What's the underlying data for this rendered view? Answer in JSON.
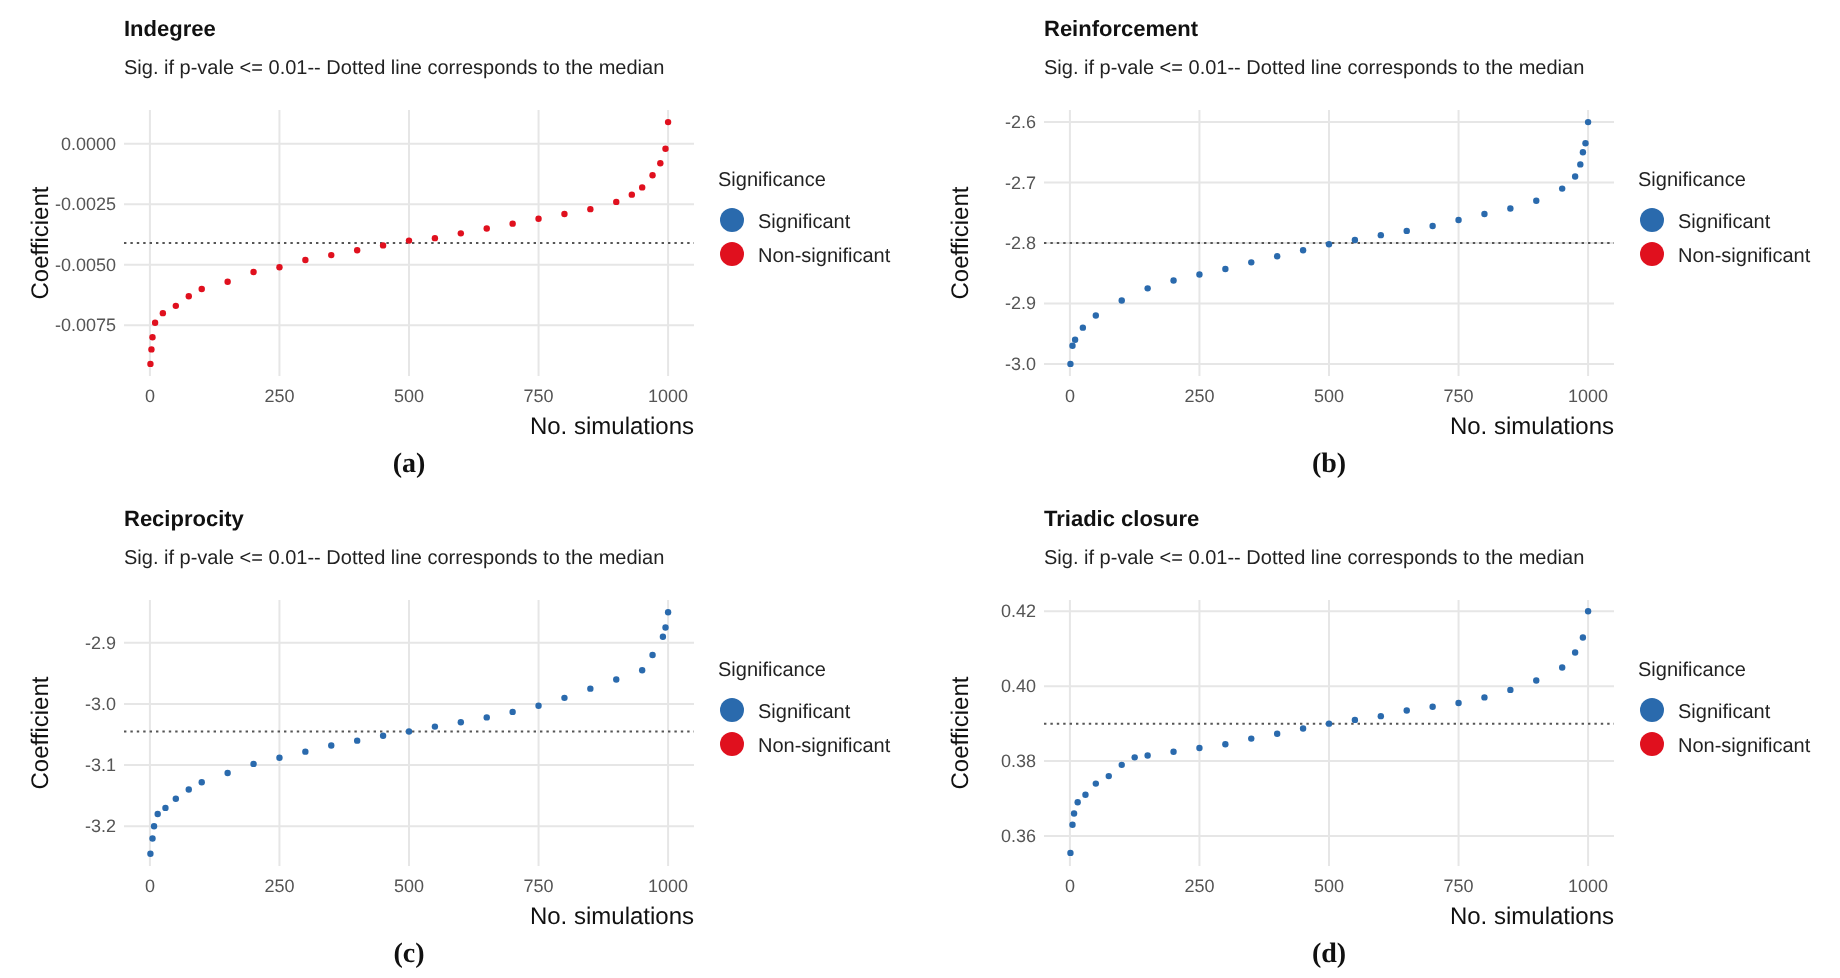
{
  "chart_data": [
    {
      "type": "scatter",
      "title": "Indegree",
      "subtitle": "Sig. if p-vale <= 0.01-- Dotted line corresponds to the median",
      "xlabel": "No. simulations",
      "ylabel": "Coefficient",
      "legend_title": "Significance",
      "legend": "right",
      "grid": true,
      "marker": "circle",
      "xlim": [
        -50,
        1050
      ],
      "xticks": [
        0,
        250,
        500,
        750,
        1000
      ],
      "ylim": [
        -0.0096,
        0.0014
      ],
      "yticks": [
        {
          "value": 0,
          "label": "0.0000"
        },
        {
          "value": -0.0025,
          "label": "-0.0025"
        },
        {
          "value": -0.005,
          "label": "-0.0050"
        },
        {
          "value": -0.0075,
          "label": "-0.0075"
        }
      ],
      "ref_lines": [
        {
          "axis": "y",
          "value": -0.0041,
          "line_style": "dotted",
          "color": "#555555"
        }
      ],
      "annotations": [
        "(a)"
      ],
      "series": [
        {
          "name": "Significant",
          "color": "#2a6aad"
        },
        {
          "name": "Non-significant",
          "color": "#e0101e",
          "x": [
            1,
            3,
            5,
            10,
            25,
            50,
            75,
            100,
            150,
            200,
            250,
            300,
            350,
            400,
            450,
            500,
            550,
            600,
            650,
            700,
            750,
            800,
            850,
            900,
            930,
            950,
            970,
            985,
            995,
            1000
          ],
          "values": [
            -0.0091,
            -0.0085,
            -0.008,
            -0.0074,
            -0.007,
            -0.0067,
            -0.0063,
            -0.006,
            -0.0057,
            -0.0053,
            -0.0051,
            -0.0048,
            -0.0046,
            -0.0044,
            -0.0042,
            -0.004,
            -0.0039,
            -0.0037,
            -0.0035,
            -0.0033,
            -0.0031,
            -0.0029,
            -0.0027,
            -0.0024,
            -0.0021,
            -0.0018,
            -0.0013,
            -0.0008,
            -0.0002,
            0.0009
          ]
        }
      ]
    },
    {
      "type": "scatter",
      "title": "Reinforcement",
      "subtitle": "Sig. if p-vale <= 0.01-- Dotted line corresponds to the median",
      "xlabel": "No. simulations",
      "ylabel": "Coefficient",
      "legend_title": "Significance",
      "legend": "right",
      "grid": true,
      "marker": "circle",
      "xlim": [
        -50,
        1050
      ],
      "xticks": [
        0,
        250,
        500,
        750,
        1000
      ],
      "ylim": [
        -3.02,
        -2.58
      ],
      "yticks": [
        {
          "value": -2.6,
          "label": "-2.6"
        },
        {
          "value": -2.7,
          "label": "-2.7"
        },
        {
          "value": -2.8,
          "label": "-2.8"
        },
        {
          "value": -2.9,
          "label": "-2.9"
        },
        {
          "value": -3.0,
          "label": "-3.0"
        }
      ],
      "ref_lines": [
        {
          "axis": "y",
          "value": -2.8,
          "line_style": "dotted",
          "color": "#555555"
        }
      ],
      "annotations": [
        "(b)"
      ],
      "series": [
        {
          "name": "Significant",
          "color": "#2a6aad",
          "x": [
            1,
            5,
            10,
            25,
            50,
            100,
            150,
            200,
            250,
            300,
            350,
            400,
            450,
            500,
            550,
            600,
            650,
            700,
            750,
            800,
            850,
            900,
            950,
            975,
            985,
            990,
            995,
            1000
          ],
          "values": [
            -3.0,
            -2.97,
            -2.96,
            -2.94,
            -2.92,
            -2.895,
            -2.875,
            -2.862,
            -2.852,
            -2.843,
            -2.832,
            -2.822,
            -2.812,
            -2.802,
            -2.795,
            -2.787,
            -2.78,
            -2.772,
            -2.762,
            -2.752,
            -2.743,
            -2.73,
            -2.71,
            -2.69,
            -2.67,
            -2.65,
            -2.635,
            -2.6
          ]
        },
        {
          "name": "Non-significant",
          "color": "#e0101e"
        }
      ]
    },
    {
      "type": "scatter",
      "title": "Reciprocity",
      "subtitle": "Sig. if p-vale <= 0.01-- Dotted line corresponds to the median",
      "xlabel": "No. simulations",
      "ylabel": "Coefficient",
      "legend_title": "Significance",
      "legend": "right",
      "grid": true,
      "marker": "circle",
      "xlim": [
        -50,
        1050
      ],
      "xticks": [
        0,
        250,
        500,
        750,
        1000
      ],
      "ylim": [
        -3.265,
        -2.83
      ],
      "yticks": [
        {
          "value": -2.9,
          "label": "-2.9"
        },
        {
          "value": -3.0,
          "label": "-3.0"
        },
        {
          "value": -3.1,
          "label": "-3.1"
        },
        {
          "value": -3.2,
          "label": "-3.2"
        }
      ],
      "ref_lines": [
        {
          "axis": "y",
          "value": -3.045,
          "line_style": "dotted",
          "color": "#555555"
        }
      ],
      "annotations": [
        "(c)"
      ],
      "series": [
        {
          "name": "Significant",
          "color": "#2a6aad",
          "x": [
            1,
            5,
            8,
            15,
            30,
            50,
            75,
            100,
            150,
            200,
            250,
            300,
            350,
            400,
            450,
            500,
            550,
            600,
            650,
            700,
            750,
            800,
            850,
            900,
            950,
            970,
            990,
            995,
            1000
          ],
          "values": [
            -3.245,
            -3.22,
            -3.2,
            -3.18,
            -3.17,
            -3.155,
            -3.14,
            -3.128,
            -3.113,
            -3.098,
            -3.088,
            -3.078,
            -3.068,
            -3.06,
            -3.052,
            -3.045,
            -3.037,
            -3.03,
            -3.022,
            -3.013,
            -3.003,
            -2.99,
            -2.975,
            -2.96,
            -2.945,
            -2.92,
            -2.89,
            -2.875,
            -2.85
          ]
        },
        {
          "name": "Non-significant",
          "color": "#e0101e"
        }
      ]
    },
    {
      "type": "scatter",
      "title": "Triadic closure",
      "subtitle": "Sig. if p-vale <= 0.01-- Dotted line corresponds to the median",
      "xlabel": "No. simulations",
      "ylabel": "Coefficient",
      "legend_title": "Significance",
      "legend": "right",
      "grid": true,
      "marker": "circle",
      "xlim": [
        -50,
        1050
      ],
      "xticks": [
        0,
        250,
        500,
        750,
        1000
      ],
      "ylim": [
        0.352,
        0.423
      ],
      "yticks": [
        {
          "value": 0.42,
          "label": "0.42"
        },
        {
          "value": 0.4,
          "label": "0.40"
        },
        {
          "value": 0.38,
          "label": "0.38"
        },
        {
          "value": 0.36,
          "label": "0.36"
        }
      ],
      "ref_lines": [
        {
          "axis": "y",
          "value": 0.39,
          "line_style": "dotted",
          "color": "#555555"
        }
      ],
      "annotations": [
        "(d)"
      ],
      "series": [
        {
          "name": "Significant",
          "color": "#2a6aad",
          "x": [
            1,
            5,
            8,
            15,
            30,
            50,
            75,
            100,
            125,
            150,
            200,
            250,
            300,
            350,
            400,
            450,
            500,
            550,
            600,
            650,
            700,
            750,
            800,
            850,
            900,
            950,
            975,
            990,
            1000
          ],
          "values": [
            0.3555,
            0.363,
            0.366,
            0.369,
            0.371,
            0.374,
            0.376,
            0.379,
            0.381,
            0.3815,
            0.3825,
            0.3835,
            0.3845,
            0.386,
            0.3873,
            0.3887,
            0.39,
            0.391,
            0.392,
            0.3935,
            0.3945,
            0.3955,
            0.397,
            0.399,
            0.4015,
            0.405,
            0.409,
            0.413,
            0.42
          ]
        },
        {
          "name": "Non-significant",
          "color": "#e0101e"
        }
      ]
    }
  ]
}
